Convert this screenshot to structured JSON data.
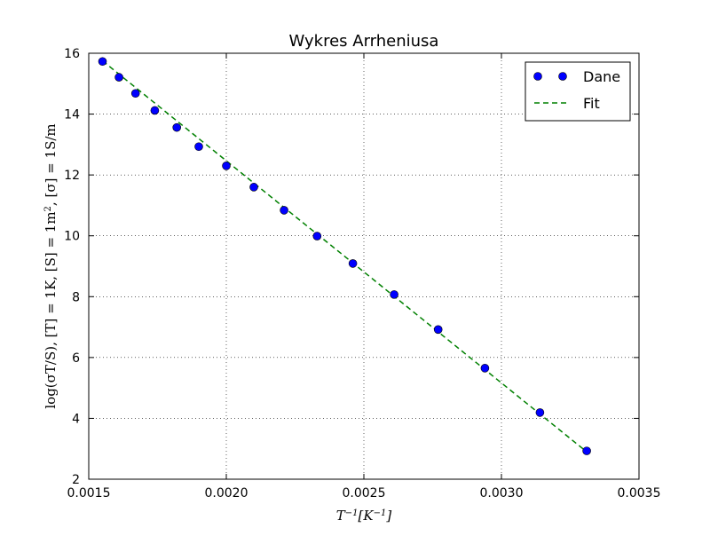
{
  "chart_data": {
    "type": "scatter",
    "title": "Wykres Arrheniusa",
    "xlabel": "T^{-1} [K^{-1}]",
    "ylabel": "log(σT/S), [T] = 1K, [S] = 1m², [σ] = 1S/m",
    "xlim": [
      0.0015,
      0.0035
    ],
    "ylim": [
      2,
      16
    ],
    "x_ticks": [
      0.0015,
      0.002,
      0.0025,
      0.003,
      0.0035
    ],
    "x_tick_labels": [
      "0.0015",
      "0.0020",
      "0.0025",
      "0.0030",
      "0.0035"
    ],
    "y_ticks": [
      2,
      4,
      6,
      8,
      10,
      12,
      14,
      16
    ],
    "y_tick_labels": [
      "2",
      "4",
      "6",
      "8",
      "10",
      "12",
      "14",
      "16"
    ],
    "grid": true,
    "grid_style": "dotted",
    "legend": "top-right",
    "series": [
      {
        "name": "Dane",
        "type": "scatter",
        "color": "#0000ff",
        "x": [
          0.00155,
          0.00161,
          0.00167,
          0.00174,
          0.00182,
          0.0019,
          0.002,
          0.0021,
          0.00221,
          0.00233,
          0.00246,
          0.00261,
          0.00277,
          0.00294,
          0.00314,
          0.00331
        ],
        "y": [
          15.73,
          15.21,
          14.68,
          14.12,
          13.56,
          12.93,
          12.3,
          11.6,
          10.84,
          9.99,
          9.09,
          8.07,
          6.92,
          5.65,
          4.19,
          2.93
        ]
      },
      {
        "name": "Fit",
        "type": "line",
        "style": "dashed",
        "color": "#008000",
        "x": [
          0.00155,
          0.00331
        ],
        "y": [
          15.75,
          2.9
        ]
      }
    ]
  }
}
